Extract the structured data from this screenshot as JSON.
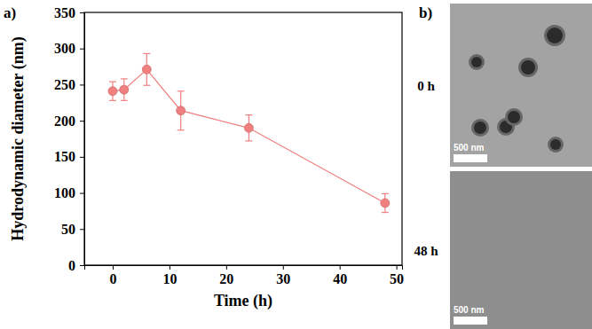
{
  "chart_data": {
    "type": "line",
    "title": "a)",
    "x_label": "Time (h)",
    "y_label": "Hydrodynamic diameter (nm)",
    "x": [
      0,
      2,
      6,
      12,
      24,
      48
    ],
    "values": [
      241,
      243,
      271,
      214,
      190,
      86
    ],
    "errors": [
      13,
      15,
      22,
      27,
      18,
      13
    ],
    "color": "#f08080",
    "marker": "circle",
    "xlim": [
      -5,
      51
    ],
    "xticks": [
      0,
      10,
      20,
      30,
      40,
      50
    ],
    "ylim": [
      0,
      350
    ],
    "yticks": [
      0,
      50,
      100,
      150,
      200,
      250,
      300,
      350
    ]
  },
  "panel_b": {
    "label": "b)",
    "images": [
      {
        "label": "0 h",
        "scale_bar": "500 nm"
      },
      {
        "label": "48 h",
        "scale_bar": "500 nm"
      }
    ]
  }
}
